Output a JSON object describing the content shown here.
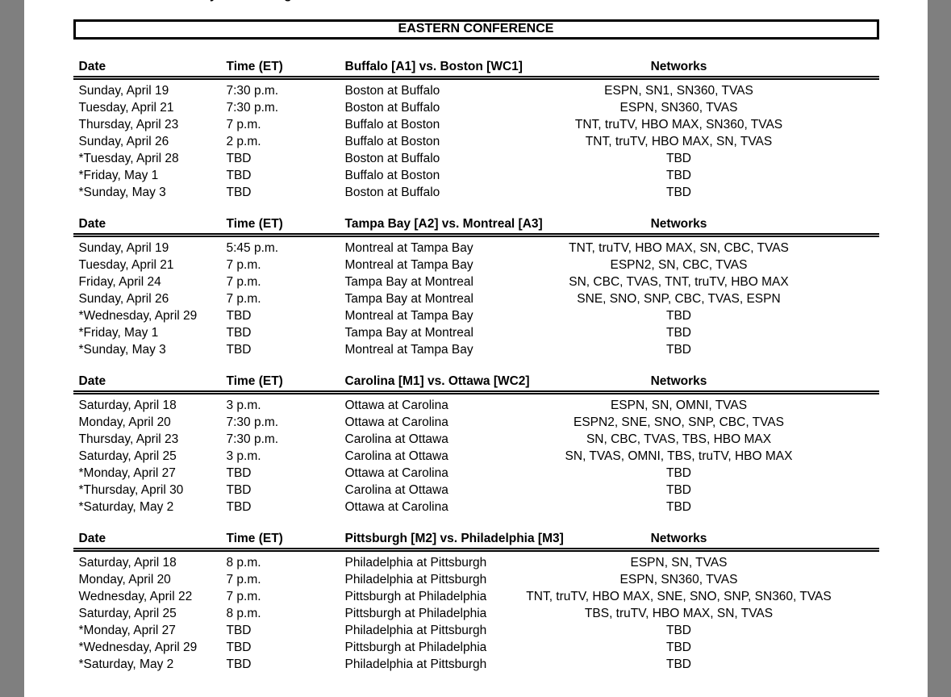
{
  "viewer": {
    "gutter_color": "#7f7f7f",
    "page_color": "#ffffff",
    "border_color": "#000000",
    "top_edge_fragments": {
      "left": "y",
      "right": "g"
    }
  },
  "conference_title": "EASTERN CONFERENCE",
  "columns": {
    "date": "Date",
    "time": "Time (ET)",
    "networks": "Networks"
  },
  "series": [
    {
      "matchup": "Buffalo [A1] vs. Boston [WC1]",
      "games": [
        {
          "date": "Sunday, April 19",
          "time": "7:30 p.m.",
          "game": "Boston at Buffalo",
          "networks": "ESPN, SN1, SN360, TVAS"
        },
        {
          "date": "Tuesday, April 21",
          "time": "7:30 p.m.",
          "game": "Boston at Buffalo",
          "networks": "ESPN, SN360, TVAS"
        },
        {
          "date": "Thursday, April 23",
          "time": "7 p.m.",
          "game": "Buffalo at Boston",
          "networks": "TNT, truTV, HBO MAX, SN360, TVAS"
        },
        {
          "date": "Sunday, April 26",
          "time": "2 p.m.",
          "game": "Buffalo at Boston",
          "networks": "TNT, truTV, HBO MAX, SN, TVAS"
        },
        {
          "date": "*Tuesday, April 28",
          "time": "TBD",
          "game": "Boston at Buffalo",
          "networks": "TBD"
        },
        {
          "date": "*Friday, May 1",
          "time": "TBD",
          "game": "Buffalo at Boston",
          "networks": "TBD"
        },
        {
          "date": "*Sunday, May 3",
          "time": "TBD",
          "game": "Boston at Buffalo",
          "networks": "TBD"
        }
      ]
    },
    {
      "matchup": "Tampa Bay [A2] vs. Montreal [A3]",
      "games": [
        {
          "date": "Sunday, April 19",
          "time": "5:45 p.m.",
          "game": "Montreal at Tampa Bay",
          "networks": "TNT, truTV, HBO MAX, SN, CBC, TVAS"
        },
        {
          "date": "Tuesday, April 21",
          "time": "7 p.m.",
          "game": "Montreal at Tampa Bay",
          "networks": "ESPN2, SN, CBC, TVAS"
        },
        {
          "date": "Friday, April 24",
          "time": "7 p.m.",
          "game": "Tampa Bay at Montreal",
          "networks": "SN, CBC, TVAS, TNT, truTV, HBO MAX"
        },
        {
          "date": "Sunday, April 26",
          "time": "7 p.m.",
          "game": "Tampa Bay at Montreal",
          "networks": "SNE, SNO, SNP, CBC, TVAS, ESPN"
        },
        {
          "date": "*Wednesday, April 29",
          "time": "TBD",
          "game": "Montreal at Tampa Bay",
          "networks": "TBD"
        },
        {
          "date": "*Friday, May 1",
          "time": "TBD",
          "game": "Tampa Bay at Montreal",
          "networks": "TBD"
        },
        {
          "date": "*Sunday, May 3",
          "time": "TBD",
          "game": "Montreal at Tampa Bay",
          "networks": "TBD"
        }
      ]
    },
    {
      "matchup": "Carolina [M1] vs. Ottawa [WC2]",
      "games": [
        {
          "date": "Saturday, April 18",
          "time": "3 p.m.",
          "game": "Ottawa at Carolina",
          "networks": "ESPN, SN, OMNI, TVAS"
        },
        {
          "date": "Monday, April 20",
          "time": "7:30 p.m.",
          "game": "Ottawa at Carolina",
          "networks": "ESPN2, SNE, SNO, SNP, CBC, TVAS"
        },
        {
          "date": "Thursday, April 23",
          "time": "7:30 p.m.",
          "game": "Carolina at Ottawa",
          "networks": "SN, CBC, TVAS, TBS, HBO MAX"
        },
        {
          "date": "Saturday, April 25",
          "time": "3 p.m.",
          "game": "Carolina at Ottawa",
          "networks": "SN, TVAS, OMNI, TBS, truTV, HBO MAX"
        },
        {
          "date": "*Monday, April 27",
          "time": "TBD",
          "game": "Ottawa at Carolina",
          "networks": "TBD"
        },
        {
          "date": "*Thursday, April 30",
          "time": "TBD",
          "game": "Carolina at Ottawa",
          "networks": "TBD"
        },
        {
          "date": "*Saturday, May 2",
          "time": "TBD",
          "game": "Ottawa at Carolina",
          "networks": "TBD"
        }
      ]
    },
    {
      "matchup": "Pittsburgh [M2] vs. Philadelphia [M3]",
      "games": [
        {
          "date": "Saturday, April 18",
          "time": "8 p.m.",
          "game": "Philadelphia at Pittsburgh",
          "networks": "ESPN, SN, TVAS"
        },
        {
          "date": "Monday, April 20",
          "time": "7 p.m.",
          "game": "Philadelphia at Pittsburgh",
          "networks": "ESPN, SN360, TVAS"
        },
        {
          "date": "Wednesday, April 22",
          "time": "7 p.m.",
          "game": "Pittsburgh at Philadelphia",
          "networks": "TNT, truTV, HBO MAX, SNE, SNO, SNP, SN360, TVAS"
        },
        {
          "date": "Saturday, April 25",
          "time": "8 p.m.",
          "game": "Pittsburgh at Philadelphia",
          "networks": "TBS, truTV, HBO MAX, SN, TVAS"
        },
        {
          "date": "*Monday, April 27",
          "time": "TBD",
          "game": "Philadelphia at Pittsburgh",
          "networks": "TBD"
        },
        {
          "date": "*Wednesday, April 29",
          "time": "TBD",
          "game": "Pittsburgh at Philadelphia",
          "networks": "TBD"
        },
        {
          "date": "*Saturday, May 2",
          "time": "TBD",
          "game": "Philadelphia at Pittsburgh",
          "networks": "TBD"
        }
      ]
    }
  ]
}
